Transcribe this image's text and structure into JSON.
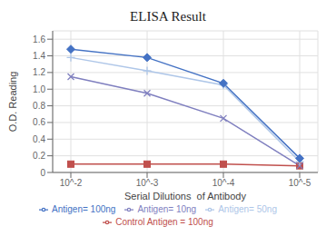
{
  "chart_data": {
    "type": "line",
    "title": "ELISA Result",
    "x_label": "Serial Dilutions  of Antibody",
    "y_label": "O.D. Reading",
    "categories": [
      "10^-2",
      "10^-3",
      "10^-4",
      "10^-5"
    ],
    "series": [
      {
        "name": "Control Antigen = 100ng",
        "color": "#c0504d",
        "marker": "square",
        "values": [
          0.1,
          0.1,
          0.1,
          0.08
        ]
      },
      {
        "name": "Antigen= 10ng",
        "color": "#7f7fbf",
        "marker": "x",
        "values": [
          1.15,
          0.95,
          0.65,
          0.08
        ]
      },
      {
        "name": "Antigen= 50ng",
        "color": "#aec6e8",
        "marker": "plus",
        "values": [
          1.38,
          1.22,
          1.05,
          0.13
        ]
      },
      {
        "name": "Antigen= 100ng",
        "color": "#4472c4",
        "marker": "diamond",
        "values": [
          1.48,
          1.38,
          1.07,
          0.17
        ]
      }
    ],
    "ylim": [
      0,
      1.7
    ],
    "yticks": [
      0,
      0.2,
      0.4,
      0.6,
      0.8,
      {
        "value": 1.0,
        "label": "1.0"
      },
      1.2,
      1.4,
      1.6
    ],
    "grid": true,
    "legend": "bottom"
  }
}
